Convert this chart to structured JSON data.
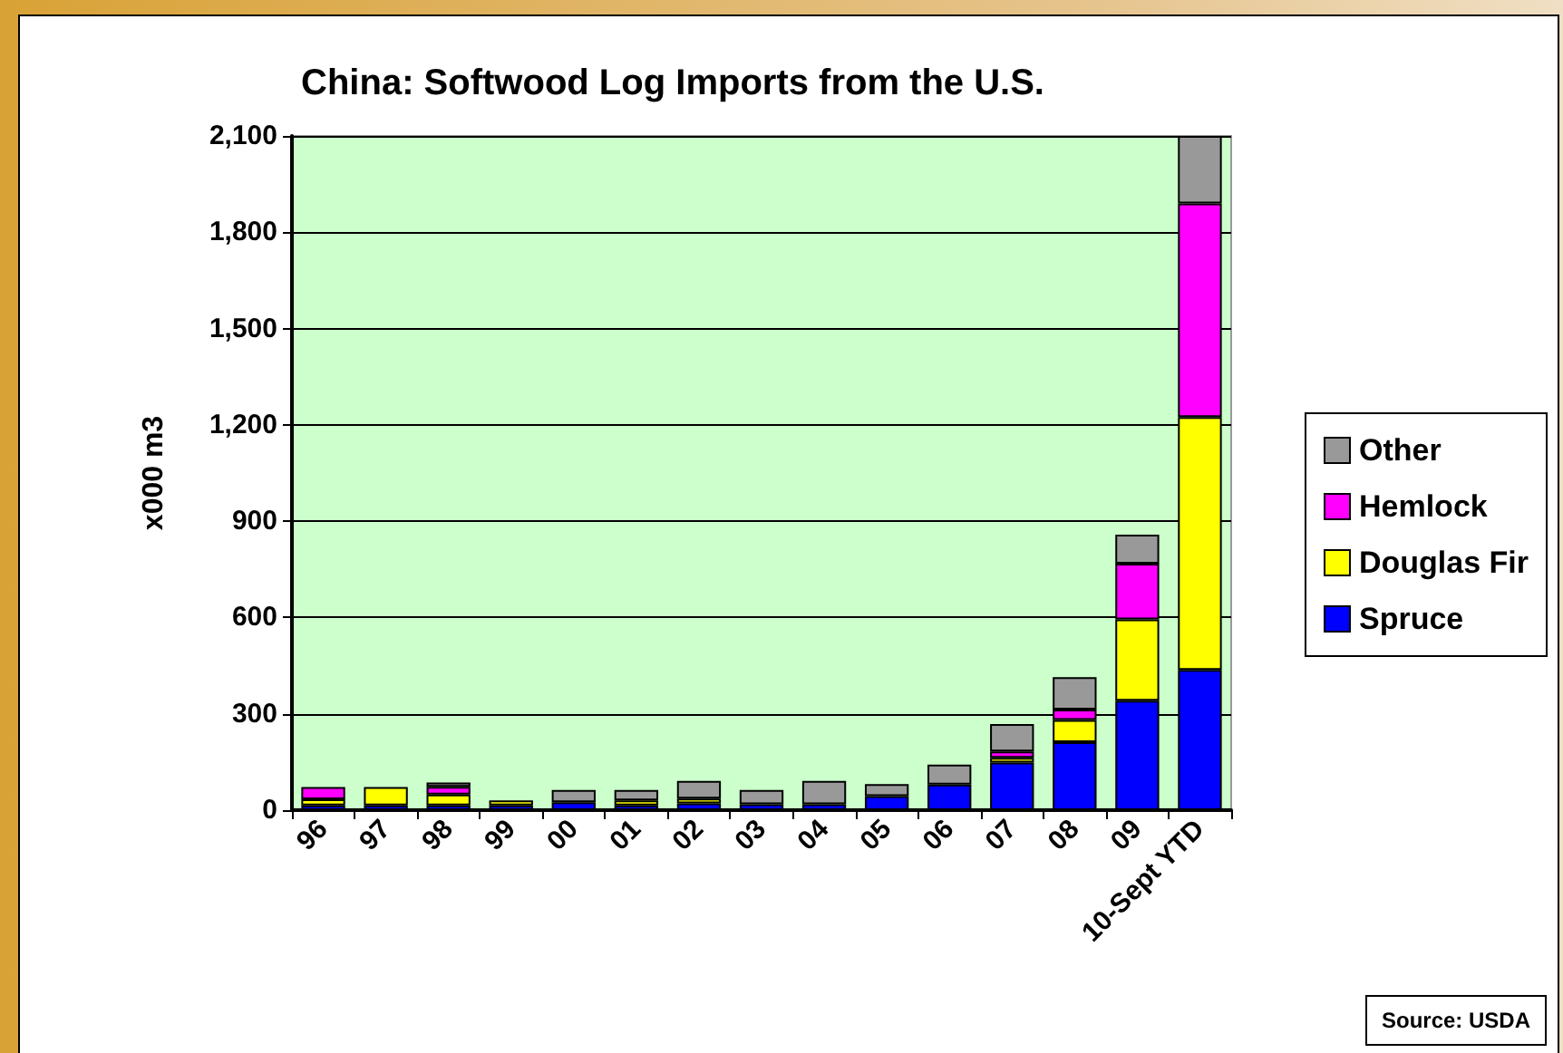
{
  "chart_data": {
    "type": "bar",
    "title": "China: Softwood Log Imports from the U.S.",
    "ylabel": "x000 m3",
    "categories": [
      "96",
      "97",
      "98",
      "99",
      "00",
      "01",
      "02",
      "03",
      "04",
      "05",
      "06",
      "07",
      "08",
      "09",
      "10-Sept YTD"
    ],
    "stacked": true,
    "series": [
      {
        "name": "Spruce",
        "color": "#0000ff",
        "values": [
          15,
          15,
          15,
          15,
          25,
          15,
          21,
          18,
          18,
          44,
          80,
          148,
          212,
          341,
          437
        ]
      },
      {
        "name": "Douglas Fir",
        "color": "#ffff00",
        "values": [
          19,
          57,
          34,
          15,
          null,
          15,
          15,
          null,
          null,
          null,
          null,
          15,
          69,
          253,
          787
        ]
      },
      {
        "name": "Hemlock",
        "color": "#ff00ff",
        "values": [
          38,
          null,
          24,
          null,
          null,
          null,
          null,
          null,
          null,
          null,
          null,
          20,
          32,
          174,
          666
        ]
      },
      {
        "name": "Other",
        "color": "#999999",
        "values": [
          null,
          null,
          13,
          null,
          38,
          33,
          55,
          45,
          73,
          37,
          62,
          85,
          101,
          90,
          210
        ]
      }
    ],
    "ylim": [
      0,
      2100
    ],
    "yticks": [
      {
        "value": 0,
        "label": "0"
      },
      {
        "value": 300,
        "label": "300"
      },
      {
        "value": 600,
        "label": "600"
      },
      {
        "value": 900,
        "label": "900"
      },
      {
        "value": 1200,
        "label": "1,200"
      },
      {
        "value": 1500,
        "label": "1,500"
      },
      {
        "value": 1800,
        "label": "1,800"
      },
      {
        "value": 2100,
        "label": "2,100"
      }
    ],
    "grid": "y",
    "legend": "right",
    "annotations": [
      "Source:  USDA"
    ]
  }
}
